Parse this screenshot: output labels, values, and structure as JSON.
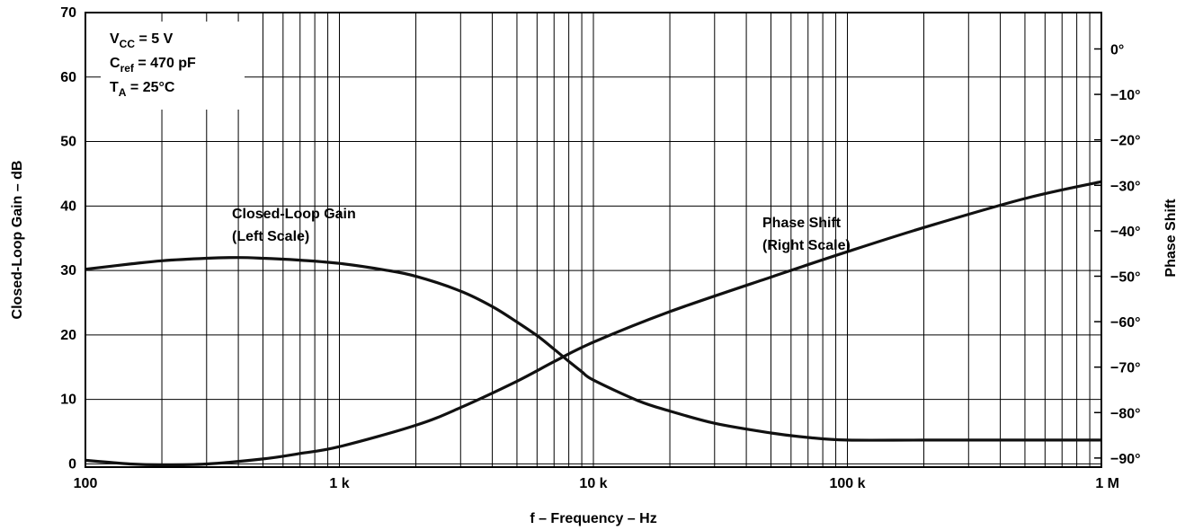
{
  "chart_data": {
    "type": "line",
    "x_scale": "log",
    "x_range": [
      100,
      1000000
    ],
    "xlabel": "f – Frequency – Hz",
    "x_ticks": [
      {
        "value": 100,
        "label": "100"
      },
      {
        "value": 1000,
        "label": "1 k"
      },
      {
        "value": 10000,
        "label": "10 k"
      },
      {
        "value": 100000,
        "label": "100 k"
      },
      {
        "value": 1000000,
        "label": "1 M"
      }
    ],
    "left_axis": {
      "label": "Closed-Loop Gain – dB",
      "range": [
        -0.5,
        70
      ],
      "ticks": [
        {
          "value": 0,
          "label": "0"
        },
        {
          "value": 10,
          "label": "10"
        },
        {
          "value": 20,
          "label": "20"
        },
        {
          "value": 30,
          "label": "30"
        },
        {
          "value": 40,
          "label": "40"
        },
        {
          "value": 50,
          "label": "50"
        },
        {
          "value": 60,
          "label": "60"
        },
        {
          "value": 70,
          "label": "70"
        }
      ]
    },
    "right_axis": {
      "label": "Phase Shift",
      "range": [
        -92,
        8
      ],
      "ticks": [
        {
          "value": 0,
          "label": "0°"
        },
        {
          "value": -10,
          "label": "−10°"
        },
        {
          "value": -20,
          "label": "−20°"
        },
        {
          "value": -30,
          "label": "−30°"
        },
        {
          "value": -40,
          "label": "−40°"
        },
        {
          "value": -50,
          "label": "−50°"
        },
        {
          "value": -60,
          "label": "−60°"
        },
        {
          "value": -70,
          "label": "−70°"
        },
        {
          "value": -80,
          "label": "−80°"
        },
        {
          "value": -90,
          "label": "−90°"
        }
      ]
    },
    "grid": true,
    "conditions": [
      {
        "main": "V",
        "sub": "CC",
        "rest": " = 5 V"
      },
      {
        "main": "C",
        "sub": "ref",
        "rest": " = 470 pF"
      },
      {
        "main": "T",
        "sub": "A",
        "rest": " = 25°C"
      }
    ],
    "series": [
      {
        "name": "Closed-Loop Gain",
        "axis": "left",
        "annotation": [
          "Closed-Loop Gain",
          "(Left Scale)"
        ],
        "x": [
          100,
          150,
          200,
          300,
          400,
          500,
          700,
          1000,
          1500,
          2000,
          3000,
          4000,
          5000,
          6000,
          7000,
          8000,
          9000,
          10000,
          15000,
          20000,
          30000,
          50000,
          70000,
          100000,
          200000,
          500000,
          1000000
        ],
        "values": [
          30.2,
          31.0,
          31.5,
          31.9,
          32.0,
          31.9,
          31.6,
          31.1,
          30.1,
          29.1,
          26.8,
          24.4,
          22.0,
          19.9,
          17.8,
          15.9,
          14.3,
          13.0,
          9.8,
          8.2,
          6.3,
          4.8,
          4.1,
          3.7,
          3.7,
          3.7,
          3.7
        ]
      },
      {
        "name": "Phase Shift",
        "axis": "right",
        "annotation": [
          "Phase Shift",
          "(Right Scale)"
        ],
        "x": [
          100,
          150,
          200,
          300,
          500,
          700,
          1000,
          2000,
          3000,
          5000,
          7000,
          10000,
          20000,
          50000,
          100000,
          200000,
          500000,
          1000000
        ],
        "values": [
          -90.5,
          -91.3,
          -91.5,
          -91.3,
          -90.2,
          -89.0,
          -87.5,
          -82.8,
          -78.9,
          -73.1,
          -68.8,
          -64.5,
          -57.8,
          -50.2,
          -44.6,
          -39.3,
          -32.9,
          -29.2
        ]
      }
    ]
  }
}
